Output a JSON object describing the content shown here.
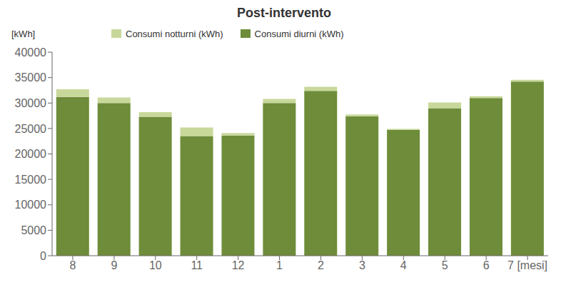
{
  "chart_data": {
    "type": "bar",
    "title": "Post-intervento",
    "ylabel": "[kWh]",
    "categories": [
      "8",
      "9",
      "10",
      "11",
      "12",
      "1",
      "2",
      "3",
      "4",
      "5",
      "6",
      "7 [mesi]"
    ],
    "series": [
      {
        "name": "Consumi notturni (kWh)",
        "color": "#c8d89a",
        "values": [
          1500,
          1100,
          900,
          1700,
          500,
          800,
          800,
          350,
          200,
          1100,
          350,
          350
        ]
      },
      {
        "name": "Consumi diurni (kWh)",
        "color": "#6e8c3a",
        "values": [
          31200,
          30000,
          27300,
          23500,
          23600,
          30000,
          32400,
          27400,
          24700,
          29000,
          31000,
          34200
        ]
      }
    ],
    "stacked": true,
    "ylim": [
      0,
      40000
    ],
    "yticks": [
      0,
      5000,
      10000,
      15000,
      20000,
      25000,
      30000,
      35000,
      40000
    ],
    "grid": false,
    "legend": "top"
  }
}
